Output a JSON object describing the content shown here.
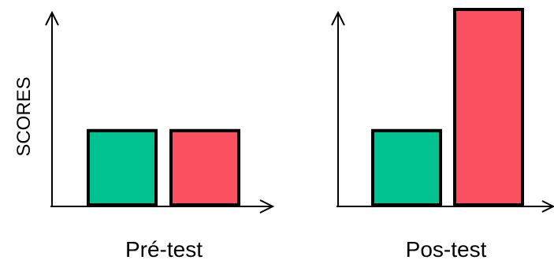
{
  "chart_data": [
    {
      "type": "bar",
      "title": "",
      "xlabel": "Pré-test",
      "ylabel": "SCORES",
      "ylim": [
        0,
        100
      ],
      "series": [
        {
          "color": "#00c291",
          "values": [
            38
          ]
        },
        {
          "color": "#fa5060",
          "values": [
            38
          ]
        }
      ]
    },
    {
      "type": "bar",
      "title": "",
      "xlabel": "Pos-test",
      "ylabel": "",
      "ylim": [
        0,
        100
      ],
      "series": [
        {
          "color": "#00c291",
          "values": [
            38
          ]
        },
        {
          "color": "#fa5060",
          "values": [
            100
          ]
        }
      ]
    }
  ]
}
